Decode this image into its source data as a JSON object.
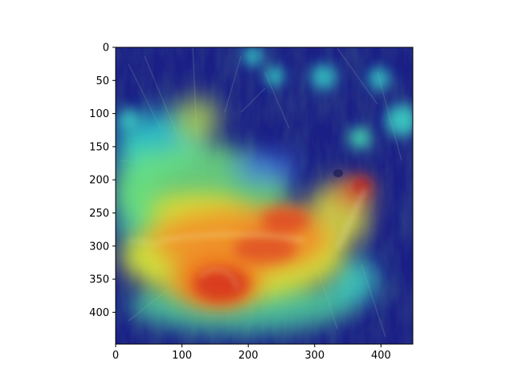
{
  "figure": {
    "background": "#ffffff",
    "image_alt": "heatmap overlay on photo of a small bird on grass",
    "colormap": "jet",
    "image_extent": {
      "x": [
        0,
        448
      ],
      "y": [
        0,
        448
      ]
    }
  },
  "x_axis": {
    "ticks": [
      {
        "value": 0,
        "label": "0"
      },
      {
        "value": 100,
        "label": "100"
      },
      {
        "value": 200,
        "label": "200"
      },
      {
        "value": 300,
        "label": "300"
      },
      {
        "value": 400,
        "label": "400"
      }
    ]
  },
  "y_axis": {
    "inverted": true,
    "ticks": [
      {
        "value": 0,
        "label": "0"
      },
      {
        "value": 50,
        "label": "50"
      },
      {
        "value": 100,
        "label": "100"
      },
      {
        "value": 150,
        "label": "150"
      },
      {
        "value": 200,
        "label": "200"
      },
      {
        "value": 250,
        "label": "250"
      },
      {
        "value": 300,
        "label": "300"
      },
      {
        "value": 350,
        "label": "350"
      },
      {
        "value": 400,
        "label": "400"
      }
    ]
  }
}
